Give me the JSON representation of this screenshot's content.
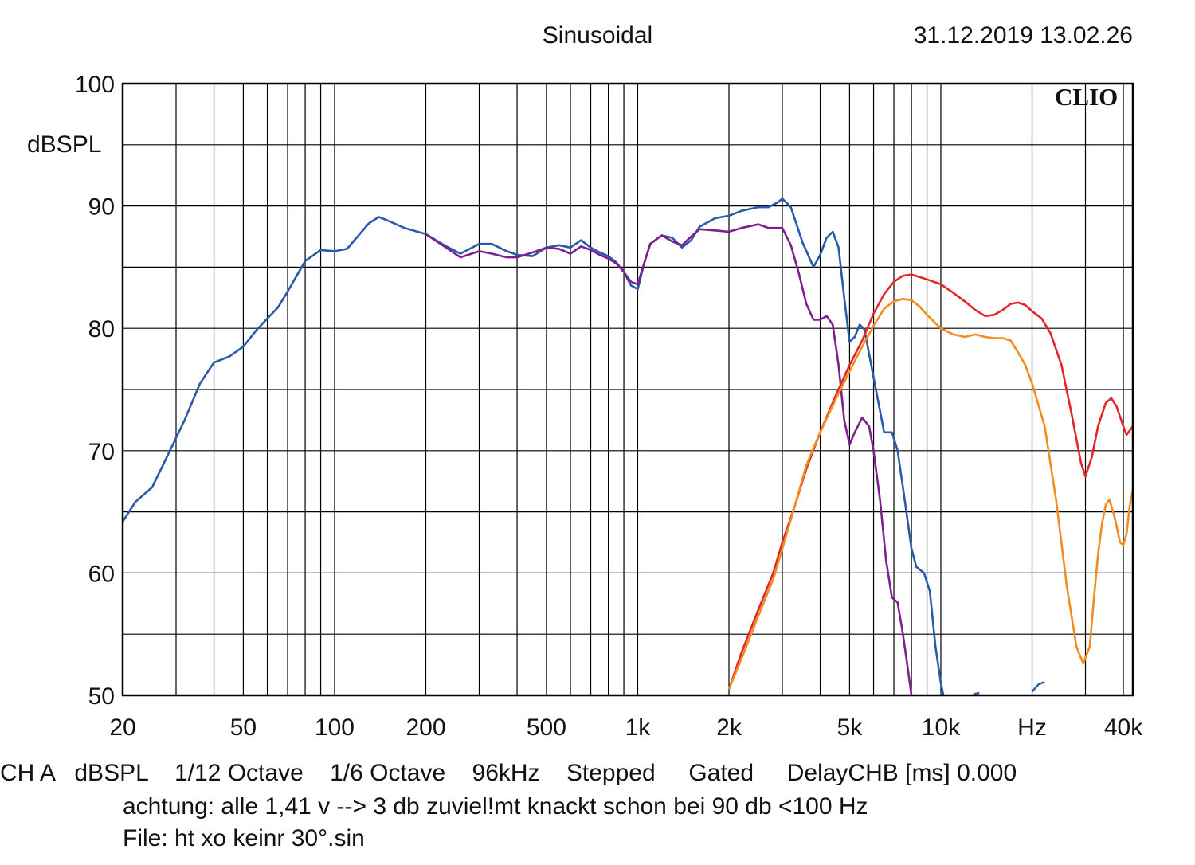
{
  "header": {
    "title": "Sinusoidal",
    "timestamp": "31.12.2019 13.02.26",
    "brand": "CLIO"
  },
  "footer": {
    "settings": "CH A   dBSPL    1/12 Octave    1/6 Octave    96kHz    Stepped     Gated     DelayCHB [ms] 0.000",
    "note": "achtung: alle 1,41 v --> 3 db zuviel!mt knackt schon bei 90 db <100 Hz",
    "file": "File: ht xo keinr 30°.sin"
  },
  "colors": {
    "blue": "#2a5aa8",
    "purple": "#7e1f8e",
    "red": "#e3262a",
    "orange": "#f28c1e",
    "grid": "#000000"
  },
  "chart_data": {
    "type": "line",
    "title": "Sinusoidal",
    "ylabel": "dBSPL",
    "xlabel": "Hz",
    "xscale": "log",
    "xlim": [
      20,
      43000
    ],
    "ylim": [
      50,
      100
    ],
    "grid": true,
    "y_ticks": [
      {
        "value": 50,
        "label": "50"
      },
      {
        "value": 60,
        "label": "60"
      },
      {
        "value": 70,
        "label": "70"
      },
      {
        "value": 80,
        "label": "80"
      },
      {
        "value": 90,
        "label": "90"
      },
      {
        "value": 100,
        "label": "100"
      }
    ],
    "x_ticks": [
      {
        "value": 20,
        "label": "20"
      },
      {
        "value": 50,
        "label": "50"
      },
      {
        "value": 100,
        "label": "100"
      },
      {
        "value": 200,
        "label": "200"
      },
      {
        "value": 500,
        "label": "500"
      },
      {
        "value": 1000,
        "label": "1k"
      },
      {
        "value": 2000,
        "label": "2k"
      },
      {
        "value": 5000,
        "label": "5k"
      },
      {
        "value": 10000,
        "label": "10k"
      },
      {
        "value": 20000,
        "label": "Hz"
      },
      {
        "value": 40000,
        "label": "40k"
      }
    ],
    "series": [
      {
        "color": "#2a5aa8",
        "points": [
          [
            20,
            64.2
          ],
          [
            22,
            65.8
          ],
          [
            25,
            67
          ],
          [
            28,
            69.5
          ],
          [
            32,
            72.5
          ],
          [
            36,
            75.5
          ],
          [
            40,
            77.2
          ],
          [
            45,
            77.7
          ],
          [
            50,
            78.5
          ],
          [
            55,
            79.8
          ],
          [
            60,
            80.8
          ],
          [
            65,
            81.7
          ],
          [
            70,
            83
          ],
          [
            75,
            84.3
          ],
          [
            80,
            85.5
          ],
          [
            90,
            86.4
          ],
          [
            100,
            86.3
          ],
          [
            110,
            86.5
          ],
          [
            120,
            87.6
          ],
          [
            130,
            88.6
          ],
          [
            140,
            89.1
          ],
          [
            150,
            88.8
          ],
          [
            170,
            88.2
          ],
          [
            200,
            87.7
          ],
          [
            230,
            86.8
          ],
          [
            260,
            86.1
          ],
          [
            300,
            86.9
          ],
          [
            330,
            86.9
          ],
          [
            370,
            86.3
          ],
          [
            400,
            86
          ],
          [
            450,
            85.9
          ],
          [
            500,
            86.6
          ],
          [
            550,
            86.8
          ],
          [
            600,
            86.6
          ],
          [
            650,
            87.2
          ],
          [
            700,
            86.6
          ],
          [
            750,
            86.2
          ],
          [
            800,
            85.9
          ],
          [
            850,
            85.4
          ],
          [
            900,
            84.6
          ],
          [
            950,
            83.5
          ],
          [
            1000,
            83.2
          ],
          [
            1050,
            85.3
          ],
          [
            1100,
            86.9
          ],
          [
            1200,
            87.6
          ],
          [
            1300,
            87.4
          ],
          [
            1400,
            86.6
          ],
          [
            1500,
            87.2
          ],
          [
            1600,
            88.3
          ],
          [
            1800,
            89
          ],
          [
            2000,
            89.2
          ],
          [
            2200,
            89.6
          ],
          [
            2500,
            89.9
          ],
          [
            2700,
            89.9
          ],
          [
            2900,
            90.3
          ],
          [
            3000,
            90.6
          ],
          [
            3200,
            89.9
          ],
          [
            3500,
            87
          ],
          [
            3800,
            85
          ],
          [
            4000,
            86
          ],
          [
            4200,
            87.4
          ],
          [
            4400,
            87.9
          ],
          [
            4600,
            86.6
          ],
          [
            4800,
            82.5
          ],
          [
            5000,
            78.9
          ],
          [
            5200,
            79.3
          ],
          [
            5400,
            80.3
          ],
          [
            5600,
            79.9
          ],
          [
            6000,
            76
          ],
          [
            6500,
            71.5
          ],
          [
            6900,
            71.5
          ],
          [
            7200,
            70
          ],
          [
            7500,
            67
          ],
          [
            8000,
            62
          ],
          [
            8300,
            60.5
          ],
          [
            8800,
            60
          ],
          [
            9200,
            58.5
          ],
          [
            9600,
            54
          ],
          [
            10000,
            51
          ],
          [
            10200,
            50
          ]
        ]
      },
      {
        "color": "#7e1f8e",
        "points": [
          [
            200,
            87.7
          ],
          [
            230,
            86.7
          ],
          [
            260,
            85.8
          ],
          [
            300,
            86.3
          ],
          [
            330,
            86.1
          ],
          [
            370,
            85.8
          ],
          [
            400,
            85.8
          ],
          [
            450,
            86.2
          ],
          [
            500,
            86.6
          ],
          [
            550,
            86.5
          ],
          [
            600,
            86.1
          ],
          [
            650,
            86.7
          ],
          [
            700,
            86.4
          ],
          [
            750,
            86
          ],
          [
            800,
            85.7
          ],
          [
            850,
            85.3
          ],
          [
            900,
            84.6
          ],
          [
            950,
            83.8
          ],
          [
            1000,
            83.6
          ],
          [
            1050,
            85.3
          ],
          [
            1100,
            86.9
          ],
          [
            1200,
            87.6
          ],
          [
            1300,
            87.1
          ],
          [
            1400,
            86.8
          ],
          [
            1500,
            87.5
          ],
          [
            1600,
            88.1
          ],
          [
            1800,
            88
          ],
          [
            2000,
            87.9
          ],
          [
            2200,
            88.2
          ],
          [
            2500,
            88.5
          ],
          [
            2700,
            88.2
          ],
          [
            3000,
            88.2
          ],
          [
            3200,
            86.8
          ],
          [
            3400,
            84.5
          ],
          [
            3600,
            82
          ],
          [
            3800,
            80.7
          ],
          [
            4000,
            80.7
          ],
          [
            4200,
            81
          ],
          [
            4400,
            80.3
          ],
          [
            4600,
            77
          ],
          [
            4800,
            72.5
          ],
          [
            5000,
            70.5
          ],
          [
            5200,
            71.5
          ],
          [
            5500,
            72.7
          ],
          [
            5800,
            72
          ],
          [
            6000,
            70
          ],
          [
            6300,
            66
          ],
          [
            6600,
            61
          ],
          [
            6900,
            58
          ],
          [
            7200,
            57.6
          ],
          [
            7500,
            55
          ],
          [
            7800,
            52
          ],
          [
            8000,
            50
          ]
        ]
      },
      {
        "color": "#e3262a",
        "points": [
          [
            2000,
            50.5
          ],
          [
            2200,
            53.5
          ],
          [
            2500,
            57
          ],
          [
            2800,
            60
          ],
          [
            3000,
            62.5
          ],
          [
            3300,
            65.5
          ],
          [
            3600,
            68.5
          ],
          [
            4000,
            71.5
          ],
          [
            4500,
            74.5
          ],
          [
            5000,
            77
          ],
          [
            5500,
            79
          ],
          [
            6000,
            81.2
          ],
          [
            6500,
            82.8
          ],
          [
            7000,
            83.8
          ],
          [
            7500,
            84.3
          ],
          [
            8000,
            84.4
          ],
          [
            8500,
            84.2
          ],
          [
            9000,
            84
          ],
          [
            10000,
            83.6
          ],
          [
            11000,
            82.9
          ],
          [
            12000,
            82.2
          ],
          [
            13000,
            81.5
          ],
          [
            14000,
            81
          ],
          [
            15000,
            81.1
          ],
          [
            16000,
            81.5
          ],
          [
            17000,
            82
          ],
          [
            18000,
            82.1
          ],
          [
            19000,
            81.9
          ],
          [
            20000,
            81.4
          ],
          [
            21500,
            80.8
          ],
          [
            23000,
            79.6
          ],
          [
            25000,
            77
          ],
          [
            27000,
            73
          ],
          [
            29000,
            69
          ],
          [
            30000,
            67.9
          ],
          [
            31500,
            69.5
          ],
          [
            33000,
            72
          ],
          [
            35000,
            73.9
          ],
          [
            36500,
            74.3
          ],
          [
            38000,
            73.6
          ],
          [
            40000,
            72
          ],
          [
            41000,
            71.3
          ],
          [
            43000,
            72
          ]
        ]
      },
      {
        "color": "#f28c1e",
        "points": [
          [
            2000,
            50.5
          ],
          [
            2200,
            53
          ],
          [
            2500,
            56.5
          ],
          [
            2800,
            59.5
          ],
          [
            3000,
            62
          ],
          [
            3300,
            65.5
          ],
          [
            3600,
            68.8
          ],
          [
            4000,
            71.5
          ],
          [
            4500,
            74.2
          ],
          [
            5000,
            76.5
          ],
          [
            5500,
            78.5
          ],
          [
            6000,
            80.2
          ],
          [
            6500,
            81.6
          ],
          [
            7000,
            82.2
          ],
          [
            7500,
            82.4
          ],
          [
            8000,
            82.3
          ],
          [
            8500,
            81.8
          ],
          [
            9000,
            81.1
          ],
          [
            10000,
            80
          ],
          [
            11000,
            79.5
          ],
          [
            12000,
            79.3
          ],
          [
            13000,
            79.5
          ],
          [
            14000,
            79.3
          ],
          [
            15000,
            79.2
          ],
          [
            16000,
            79.2
          ],
          [
            17000,
            79
          ],
          [
            18000,
            78
          ],
          [
            19000,
            77
          ],
          [
            20000,
            75.5
          ],
          [
            22000,
            72
          ],
          [
            24000,
            66
          ],
          [
            26000,
            59
          ],
          [
            28000,
            54
          ],
          [
            29500,
            52.6
          ],
          [
            31000,
            54
          ],
          [
            32000,
            58
          ],
          [
            33000,
            61.5
          ],
          [
            34000,
            64
          ],
          [
            35000,
            65.6
          ],
          [
            36000,
            66
          ],
          [
            37500,
            64.5
          ],
          [
            39000,
            62.5
          ],
          [
            40000,
            62.3
          ],
          [
            41000,
            63.2
          ],
          [
            42000,
            65.5
          ],
          [
            43000,
            66.8
          ]
        ]
      }
    ]
  }
}
